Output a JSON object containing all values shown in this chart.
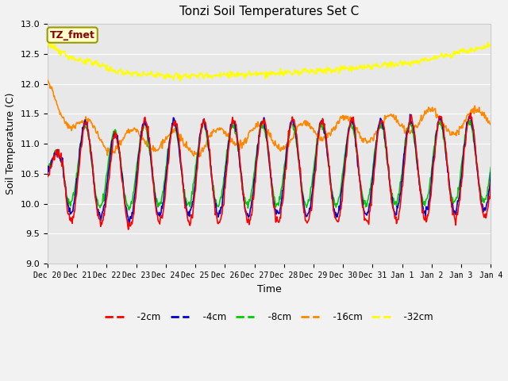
{
  "title": "Tonzi Soil Temperatures Set C",
  "xlabel": "Time",
  "ylabel": "Soil Temperature (C)",
  "ylim": [
    9.0,
    13.0
  ],
  "yticks": [
    9.0,
    9.5,
    10.0,
    10.5,
    11.0,
    11.5,
    12.0,
    12.5,
    13.0
  ],
  "colors": {
    "-2cm": "#ff0000",
    "-4cm": "#0000cc",
    "-8cm": "#00cc00",
    "-16cm": "#ff8800",
    "-32cm": "#ffff00"
  },
  "legend_label": "TZ_fmet",
  "legend_bg": "#ffffcc",
  "legend_border": "#999900",
  "legend_text_color": "#880000",
  "fig_bg": "#f2f2f2",
  "plot_bg": "#e8e8e8",
  "n_points": 720,
  "total_days": 15.0
}
